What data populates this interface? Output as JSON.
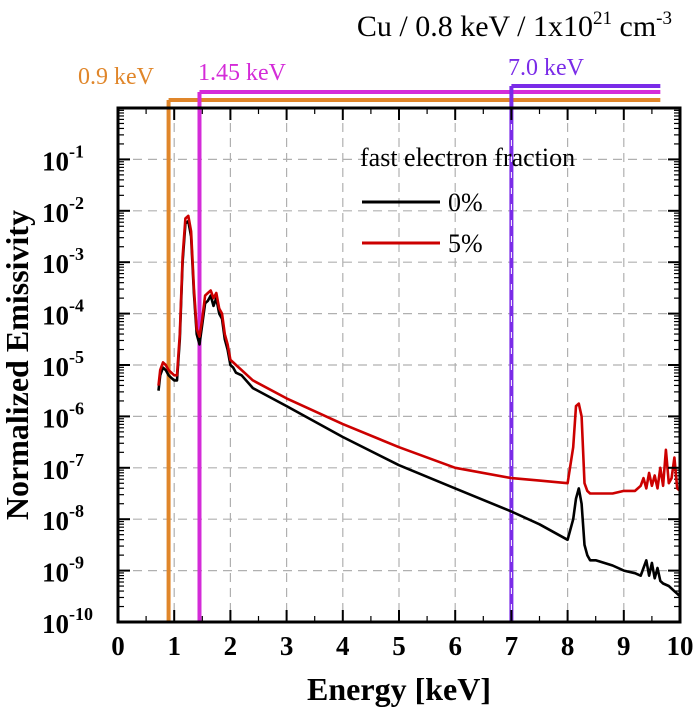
{
  "chart_data": {
    "type": "line",
    "title": "Cu / 0.8 keV / 1x10",
    "title_sup1": "21",
    "title_mid": " cm",
    "title_sup2": "-3",
    "xlabel": "Energy [keV]",
    "ylabel": "Normalized Emissivity",
    "xlim": [
      0,
      10
    ],
    "ylim_exp": [
      -10,
      0
    ],
    "yscale": "log",
    "grid": true,
    "x_ticks": [
      "0",
      "1",
      "2",
      "3",
      "4",
      "5",
      "6",
      "7",
      "8",
      "9",
      "10"
    ],
    "y_ticks": [
      {
        "base": "10",
        "exp": "-1",
        "value": -1
      },
      {
        "base": "10",
        "exp": "-2",
        "value": -2
      },
      {
        "base": "10",
        "exp": "-3",
        "value": -3
      },
      {
        "base": "10",
        "exp": "-4",
        "value": -4
      },
      {
        "base": "10",
        "exp": "-5",
        "value": -5
      },
      {
        "base": "10",
        "exp": "-6",
        "value": -6
      },
      {
        "base": "10",
        "exp": "-7",
        "value": -7
      },
      {
        "base": "10",
        "exp": "-8",
        "value": -8
      },
      {
        "base": "10",
        "exp": "-9",
        "value": -9
      },
      {
        "base": "10",
        "exp": "-10",
        "value": -10
      }
    ],
    "markers": [
      {
        "label": "0.9 keV",
        "x": 0.9,
        "x_end": 9.65,
        "color": "#e0862a"
      },
      {
        "label": "1.45 keV",
        "x": 1.45,
        "x_end": 9.65,
        "color": "#d42bd8"
      },
      {
        "label": "7.0 keV",
        "x": 7.0,
        "x_end": 9.65,
        "color": "#7a2be8"
      }
    ],
    "legend": {
      "title": "fast electron fraction",
      "position": "top-right",
      "entries": [
        {
          "label": "0%",
          "color": "#000000"
        },
        {
          "label": "5%",
          "color": "#cc0000"
        }
      ]
    },
    "series": [
      {
        "name": "0%",
        "color": "#000000",
        "x": [
          0.72,
          0.75,
          0.8,
          0.85,
          0.9,
          0.95,
          1.0,
          1.05,
          1.1,
          1.15,
          1.2,
          1.25,
          1.3,
          1.35,
          1.4,
          1.45,
          1.5,
          1.55,
          1.6,
          1.65,
          1.7,
          1.75,
          1.8,
          1.85,
          1.9,
          1.95,
          2.0,
          2.05,
          2.1,
          2.2,
          2.4,
          3.0,
          4.0,
          5.0,
          6.0,
          7.0,
          7.5,
          8.0,
          8.1,
          8.15,
          8.2,
          8.25,
          8.3,
          8.35,
          8.4,
          8.5,
          8.8,
          9.0,
          9.2,
          9.3,
          9.35,
          9.4,
          9.45,
          9.5,
          9.55,
          9.6,
          9.65,
          9.7,
          9.8,
          9.9,
          10.0
        ],
        "y_exp": [
          -5.5,
          -5.2,
          -5.05,
          -5.1,
          -5.2,
          -5.25,
          -5.3,
          -5.3,
          -4.5,
          -3.0,
          -2.25,
          -2.2,
          -2.5,
          -3.6,
          -4.4,
          -4.6,
          -4.2,
          -3.8,
          -3.75,
          -3.65,
          -3.85,
          -3.7,
          -4.0,
          -4.1,
          -4.5,
          -4.7,
          -5.0,
          -5.05,
          -5.15,
          -5.2,
          -5.45,
          -5.8,
          -6.4,
          -6.95,
          -7.4,
          -7.85,
          -8.1,
          -8.4,
          -8.0,
          -7.6,
          -7.4,
          -7.7,
          -8.5,
          -8.7,
          -8.8,
          -8.8,
          -8.9,
          -9.0,
          -9.05,
          -9.1,
          -8.95,
          -8.8,
          -9.1,
          -8.85,
          -9.15,
          -8.95,
          -9.2,
          -9.25,
          -9.3,
          -9.4,
          -9.5
        ]
      },
      {
        "name": "5%",
        "color": "#cc0000",
        "x": [
          0.72,
          0.75,
          0.8,
          0.85,
          0.9,
          0.95,
          1.0,
          1.05,
          1.1,
          1.15,
          1.2,
          1.25,
          1.3,
          1.35,
          1.4,
          1.45,
          1.5,
          1.55,
          1.6,
          1.65,
          1.7,
          1.75,
          1.8,
          1.85,
          1.9,
          1.95,
          2.0,
          2.05,
          2.1,
          2.2,
          2.4,
          3.0,
          4.0,
          5.0,
          6.0,
          7.0,
          7.5,
          8.0,
          8.1,
          8.15,
          8.2,
          8.25,
          8.3,
          8.35,
          8.4,
          8.5,
          8.8,
          9.0,
          9.2,
          9.3,
          9.35,
          9.4,
          9.45,
          9.5,
          9.55,
          9.6,
          9.65,
          9.7,
          9.75,
          9.8,
          9.85,
          9.9,
          9.95,
          10.0
        ],
        "y_exp": [
          -5.4,
          -5.1,
          -4.95,
          -5.0,
          -5.1,
          -5.15,
          -5.2,
          -5.2,
          -4.4,
          -2.9,
          -2.15,
          -2.1,
          -2.4,
          -3.5,
          -4.3,
          -4.45,
          -4.1,
          -3.65,
          -3.6,
          -3.55,
          -3.7,
          -3.6,
          -3.9,
          -4.0,
          -4.4,
          -4.6,
          -4.9,
          -4.95,
          -5.0,
          -5.1,
          -5.3,
          -5.65,
          -6.15,
          -6.6,
          -7.0,
          -7.2,
          -7.25,
          -7.3,
          -6.6,
          -5.8,
          -5.75,
          -6.0,
          -7.3,
          -7.45,
          -7.5,
          -7.5,
          -7.5,
          -7.45,
          -7.45,
          -7.35,
          -7.2,
          -7.4,
          -7.1,
          -7.35,
          -7.15,
          -7.4,
          -7.0,
          -7.35,
          -6.65,
          -7.3,
          -7.2,
          -6.8,
          -7.4,
          -7.45
        ]
      }
    ]
  }
}
